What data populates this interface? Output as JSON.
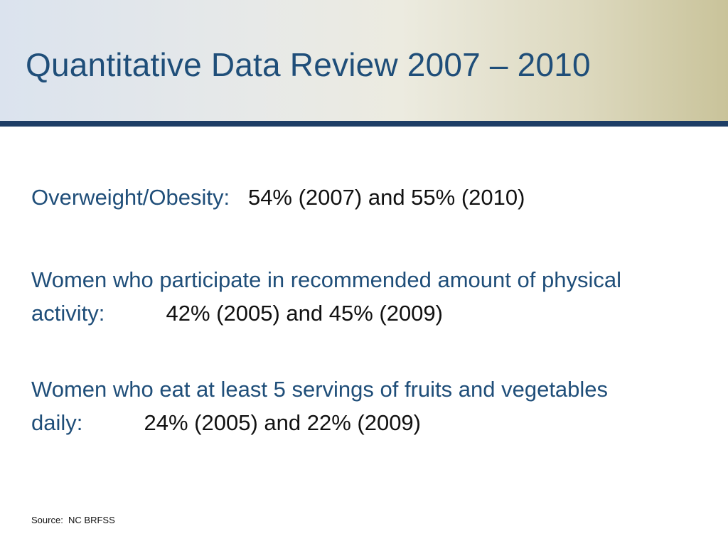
{
  "slide": {
    "title": "Quantitative Data Review 2007 – 2010",
    "stats": [
      {
        "label": "Overweight/Obesity:",
        "value": "54% (2007) and 55% (2010)"
      },
      {
        "label": "Women who participate in recommended amount of physical activity:",
        "value": "42% (2005) and 45% (2009)"
      },
      {
        "label": "Women who eat at least 5 servings of fruits and vegetables daily:",
        "value": "24% (2005) and 22% (2009)"
      }
    ],
    "source": "Source:  NC BRFSS"
  },
  "colors": {
    "title": "#1f4e79",
    "label": "#1f4e79",
    "value": "#111111",
    "header_rule": "#1e3e66"
  }
}
